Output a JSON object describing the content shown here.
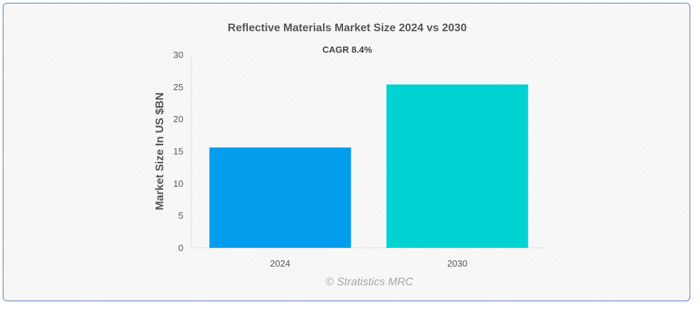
{
  "chart_data": {
    "type": "bar",
    "title": "Reflective Materials Market Size 2024 vs 2030",
    "annotation": "CAGR 8.4%",
    "ylabel": "Market Size In US $BN",
    "xlabel": "",
    "categories": [
      "2024",
      "2030"
    ],
    "values": [
      15.6,
      25.4
    ],
    "ylim": [
      0,
      30
    ],
    "yticks": [
      0,
      5,
      10,
      15,
      20,
      25,
      30
    ],
    "colors": [
      "#039ded",
      "#01d2d2"
    ],
    "grid": false,
    "legend": "none"
  },
  "watermark": "© Stratistics MRC"
}
